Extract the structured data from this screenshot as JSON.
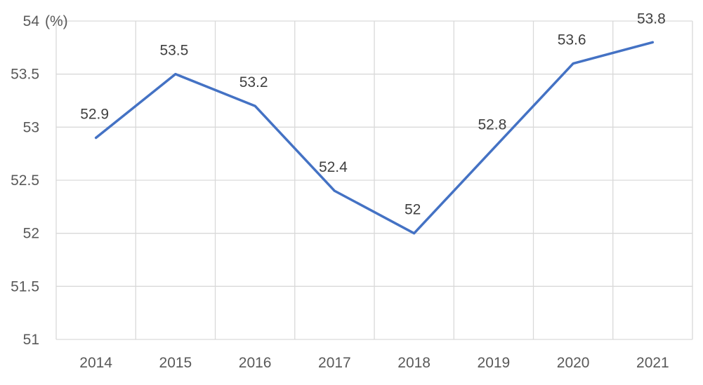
{
  "chart_data": {
    "type": "line",
    "title": "",
    "xlabel": "",
    "ylabel": "",
    "y_unit": "(%)",
    "categories": [
      "2014",
      "2015",
      "2016",
      "2017",
      "2018",
      "2019",
      "2020",
      "2021"
    ],
    "series": [
      {
        "values": [
          52.9,
          53.5,
          53.2,
          52.4,
          52.0,
          52.8,
          53.6,
          53.8
        ],
        "data_labels": [
          "52.9",
          "53.5",
          "53.2",
          "52.4",
          "52",
          "52.8",
          "53.6",
          "53.8"
        ],
        "color": "#4472c4"
      }
    ],
    "ylim": [
      51,
      54
    ],
    "y_ticks": [
      51,
      51.5,
      52,
      52.5,
      53,
      53.5,
      54
    ],
    "y_tick_labels": [
      "51",
      "51.5",
      "52",
      "52.5",
      "53",
      "53.5",
      "54"
    ],
    "grid": true,
    "gridline_color": "#d9d9d9",
    "legend": "none"
  }
}
